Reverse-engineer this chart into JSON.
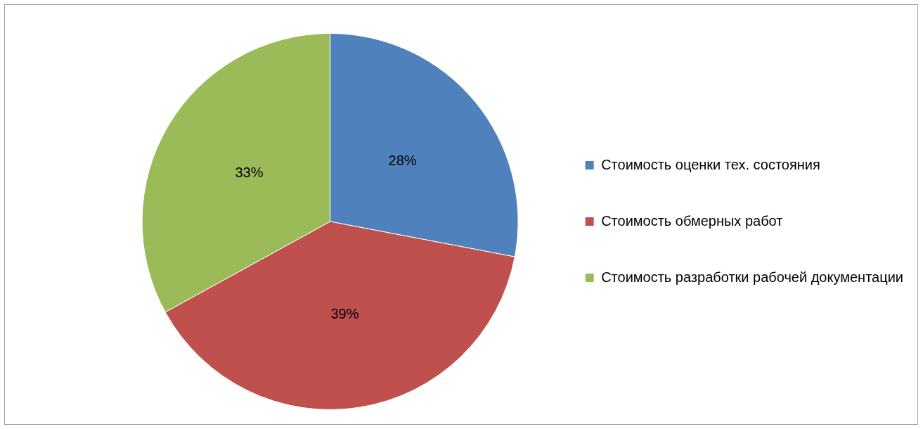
{
  "chart_data": {
    "type": "pie",
    "categories": [
      "Стоимость оценки тех. состояния",
      "Стоимость обмерных работ",
      "Стоимость разработки рабочей документации"
    ],
    "values": [
      28,
      39,
      33
    ],
    "colors": [
      "#4f81bd",
      "#c0504d",
      "#9bbb59"
    ],
    "value_labels": [
      "28%",
      "39%",
      "33%"
    ],
    "legend": "right"
  }
}
